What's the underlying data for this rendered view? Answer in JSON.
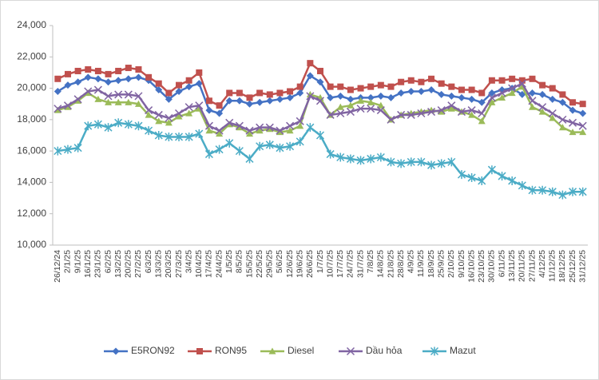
{
  "chart_data": {
    "type": "line",
    "categories": [
      "26/12/24",
      "2/1/25",
      "9/1/25",
      "16/1/25",
      "23/1/25",
      "6/2/25",
      "13/2/25",
      "20/2/25",
      "27/2/25",
      "6/3/25",
      "13/3/25",
      "20/3/25",
      "27/3/25",
      "3/4/25",
      "10/4/25",
      "17/4/25",
      "24/4/25",
      "1/5/25",
      "8/5/25",
      "15/5/25",
      "22/5/25",
      "29/5/25",
      "5/6/25",
      "12/6/25",
      "19/6/25",
      "26/6/25",
      "1/7/25",
      "10/7/25",
      "17/7/25",
      "24/7/25",
      "31/7/25",
      "7/8/25",
      "14/8/25",
      "21/8/25",
      "28/8/25",
      "4/9/25",
      "11/9/25",
      "18/9/25",
      "25/9/25",
      "2/10/25",
      "9/10/25",
      "16/10/25",
      "23/10/25",
      "30/10/25",
      "6/11/25",
      "13/11/25",
      "20/11/25",
      "27/11/25",
      "4/12/25",
      "11/12/25",
      "18/12/25",
      "25/12/25",
      "31/12/25"
    ],
    "series": [
      {
        "name": "E5RON92",
        "color": "#4472c4",
        "marker": "diamond",
        "values": [
          19800,
          20200,
          20400,
          20700,
          20600,
          20400,
          20500,
          20600,
          20700,
          20500,
          19900,
          19300,
          19800,
          20100,
          20300,
          18600,
          18400,
          19200,
          19200,
          19000,
          19100,
          19200,
          19300,
          19400,
          19700,
          20800,
          20400,
          19400,
          19500,
          19300,
          19400,
          19400,
          19500,
          19400,
          19700,
          19800,
          19800,
          19900,
          19600,
          19500,
          19400,
          19300,
          19100,
          19700,
          19900,
          20000,
          19600,
          19700,
          19600,
          19300,
          19100,
          18600,
          18400
        ]
      },
      {
        "name": "RON95",
        "color": "#c0504d",
        "marker": "square",
        "values": [
          20600,
          20900,
          21100,
          21200,
          21100,
          20900,
          21100,
          21300,
          21200,
          20700,
          20300,
          19700,
          20200,
          20500,
          21000,
          19200,
          18900,
          19700,
          19700,
          19400,
          19700,
          19600,
          19700,
          19800,
          20100,
          21600,
          21100,
          20100,
          20100,
          19900,
          20000,
          20100,
          20200,
          20100,
          20400,
          20500,
          20400,
          20600,
          20300,
          20100,
          19900,
          19900,
          19700,
          20500,
          20500,
          20600,
          20500,
          20600,
          20200,
          20000,
          19600,
          19100,
          19000
        ]
      },
      {
        "name": "Diesel",
        "color": "#9bbb59",
        "marker": "triangle",
        "values": [
          18600,
          18800,
          19200,
          19700,
          19300,
          19100,
          19100,
          19100,
          19000,
          18300,
          17900,
          17800,
          18200,
          18400,
          18700,
          17300,
          17100,
          17700,
          17500,
          17100,
          17300,
          17400,
          17200,
          17300,
          17600,
          19600,
          19400,
          18300,
          18800,
          18900,
          19200,
          19100,
          18900,
          18000,
          18300,
          18400,
          18500,
          18600,
          18500,
          18700,
          18500,
          18300,
          17900,
          19100,
          19400,
          19700,
          20100,
          18800,
          18500,
          18100,
          17500,
          17200,
          17200
        ]
      },
      {
        "name": "Dầu hỏa",
        "color": "#8064a2",
        "marker": "x",
        "values": [
          18700,
          18900,
          19300,
          19800,
          19900,
          19500,
          19600,
          19600,
          19500,
          18600,
          18300,
          18100,
          18400,
          18800,
          18900,
          17600,
          17300,
          17800,
          17600,
          17300,
          17500,
          17500,
          17300,
          17600,
          17900,
          19500,
          19200,
          18300,
          18400,
          18500,
          18700,
          18700,
          18600,
          18000,
          18300,
          18300,
          18400,
          18500,
          18600,
          18900,
          18500,
          18600,
          18400,
          19400,
          19700,
          20000,
          20300,
          19200,
          18800,
          18400,
          18000,
          17800,
          17600
        ]
      },
      {
        "name": "Mazut",
        "color": "#4bacc6",
        "marker": "star",
        "values": [
          16000,
          16100,
          16200,
          17600,
          17700,
          17500,
          17800,
          17700,
          17600,
          17300,
          17000,
          16900,
          16900,
          16900,
          17100,
          15800,
          16100,
          16500,
          16000,
          15500,
          16300,
          16400,
          16200,
          16300,
          16600,
          17500,
          17000,
          15800,
          15600,
          15500,
          15400,
          15500,
          15600,
          15300,
          15200,
          15300,
          15300,
          15100,
          15200,
          15300,
          14500,
          14300,
          14100,
          14800,
          14400,
          14100,
          13800,
          13500,
          13500,
          13400,
          13200,
          13400,
          13400
        ]
      }
    ],
    "ylim": [
      10000,
      24000
    ],
    "yticks": [
      {
        "value": 10000,
        "label": "10,000"
      },
      {
        "value": 12000,
        "label": "12,000"
      },
      {
        "value": 14000,
        "label": "14,000"
      },
      {
        "value": 16000,
        "label": "16,000"
      },
      {
        "value": 18000,
        "label": "18,000"
      },
      {
        "value": 20000,
        "label": "20,000"
      },
      {
        "value": 22000,
        "label": "22,000"
      },
      {
        "value": 24000,
        "label": "24,000"
      }
    ],
    "grid": false,
    "legend": "bottom"
  }
}
